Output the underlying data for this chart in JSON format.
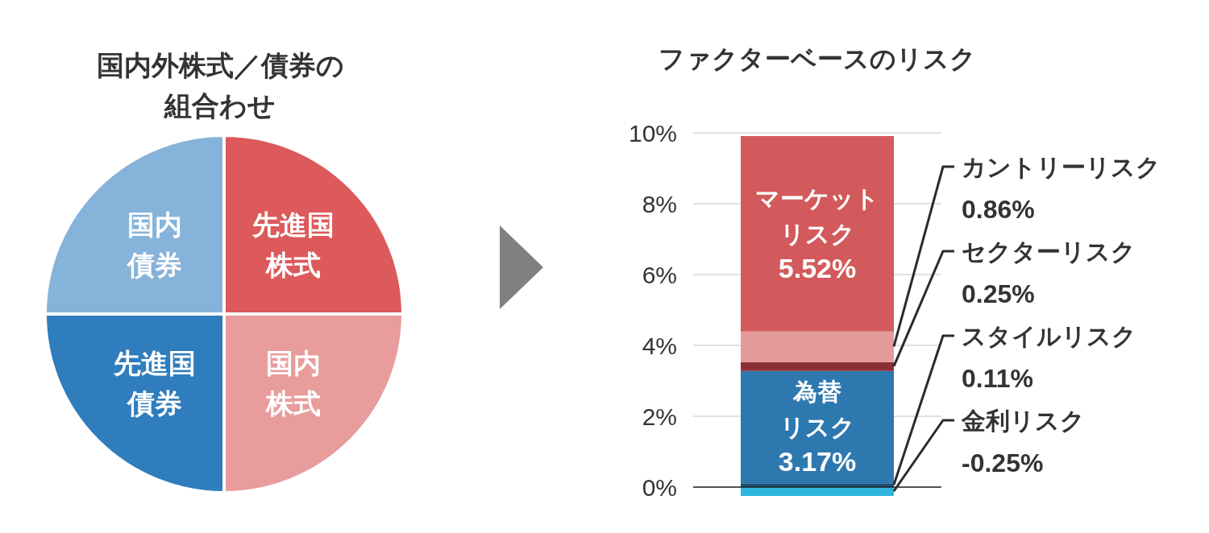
{
  "chart_data": [
    {
      "type": "pie",
      "title": "国内外株式／債券の組合わせ",
      "categories": [
        "先進国株式",
        "国内株式",
        "先進国債券",
        "国内債券"
      ],
      "values": [
        25,
        25,
        25,
        25
      ],
      "colors": [
        "#dc5a5c",
        "#e99c9c",
        "#2f7dbc",
        "#86b3d9"
      ],
      "legend": false
    },
    {
      "type": "bar",
      "title": "ファクターベースのリスク",
      "stacked": true,
      "categories": [
        null
      ],
      "ylim": [
        -0.25,
        10
      ],
      "yticks": [
        {
          "value": 0,
          "label": "0%"
        },
        {
          "value": 2,
          "label": "2%"
        },
        {
          "value": 4,
          "label": "4%"
        },
        {
          "value": 6,
          "label": "6%"
        },
        {
          "value": 8,
          "label": "8%"
        },
        {
          "value": 10,
          "label": "10%"
        }
      ],
      "grid": "y",
      "legend": false,
      "series": [
        {
          "name": "金利リスク",
          "color": "#2fb5dc",
          "values": [
            -0.25
          ],
          "value_labels": [
            "-0.25%"
          ]
        },
        {
          "name": "スタイルリスク",
          "color": "#1d4e78",
          "values": [
            0.11
          ],
          "value_labels": [
            "0.11%"
          ]
        },
        {
          "name": "為替リスク",
          "color": "#2e78b0",
          "values": [
            3.17
          ],
          "value_labels": [
            "3.17%"
          ]
        },
        {
          "name": "セクターリスク",
          "color": "#8a3035",
          "values": [
            0.25
          ],
          "value_labels": [
            "0.25%"
          ]
        },
        {
          "name": "カントリーリスク",
          "color": "#e39a9a",
          "values": [
            0.86
          ],
          "value_labels": [
            "0.86%"
          ]
        },
        {
          "name": "マーケットリスク",
          "color": "#d25a5c",
          "values": [
            5.52
          ],
          "value_labels": [
            "5.52%"
          ]
        }
      ]
    }
  ]
}
